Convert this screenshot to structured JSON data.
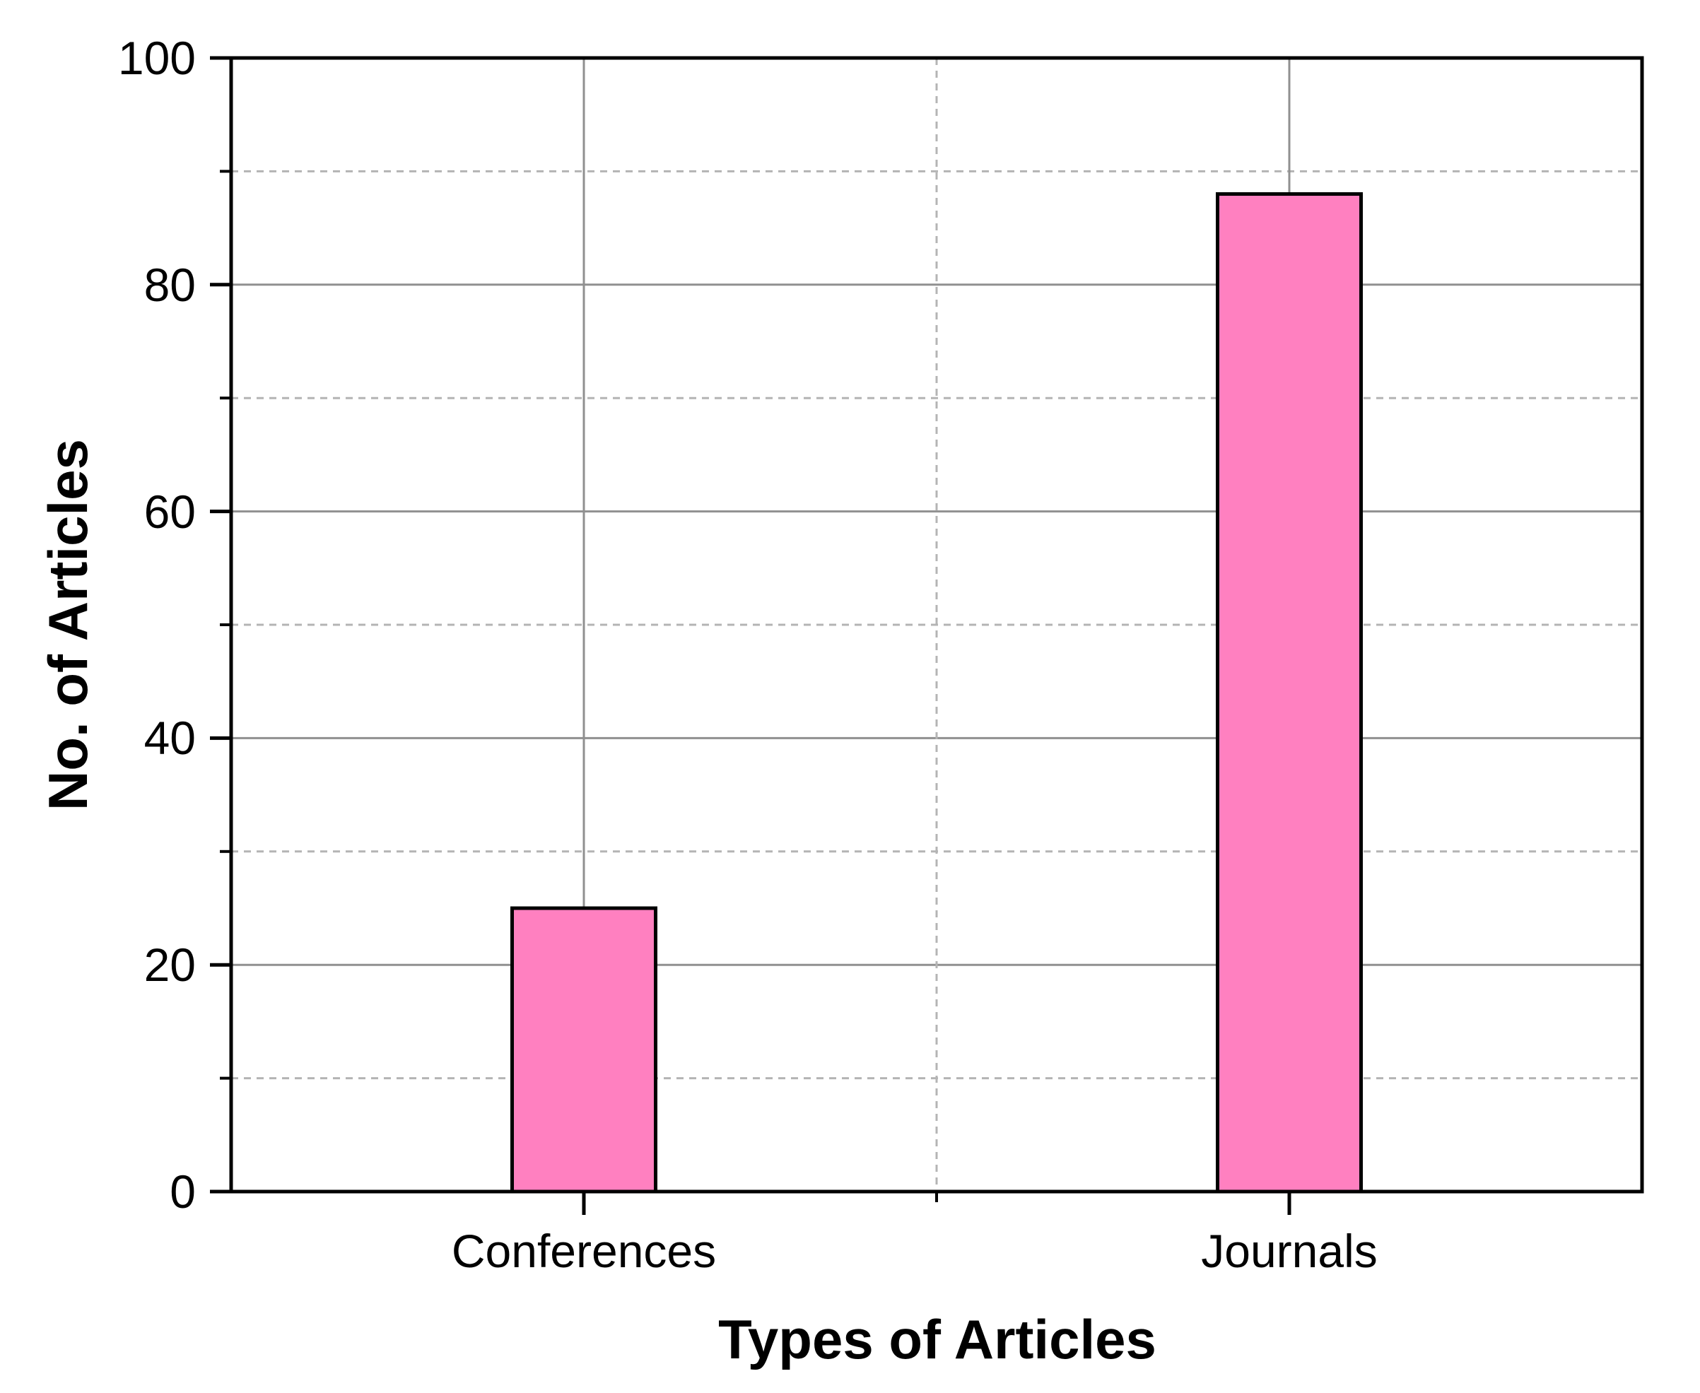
{
  "chart_data": {
    "type": "bar",
    "categories": [
      "Conferences",
      "Journals"
    ],
    "values": [
      25,
      88
    ],
    "title": "",
    "xlabel": "Types of Articles",
    "ylabel": "No. of Articles",
    "ylim": [
      0,
      100
    ],
    "y_major_tick_step": 20,
    "y_minor_tick_step": 10,
    "y_tick_labels": [
      "0",
      "20",
      "40",
      "60",
      "80",
      "100"
    ],
    "grid": "major solid horizontal and vertical at categories, minor dashed between",
    "legend_position": "none",
    "colors": {
      "bar_fill": "#FF80C0",
      "bar_border": "#000000",
      "axis_frame": "#000000",
      "major_grid": "#909090",
      "minor_grid": "#B4B4B4",
      "text": "#000000",
      "background": "#FFFFFF"
    }
  }
}
